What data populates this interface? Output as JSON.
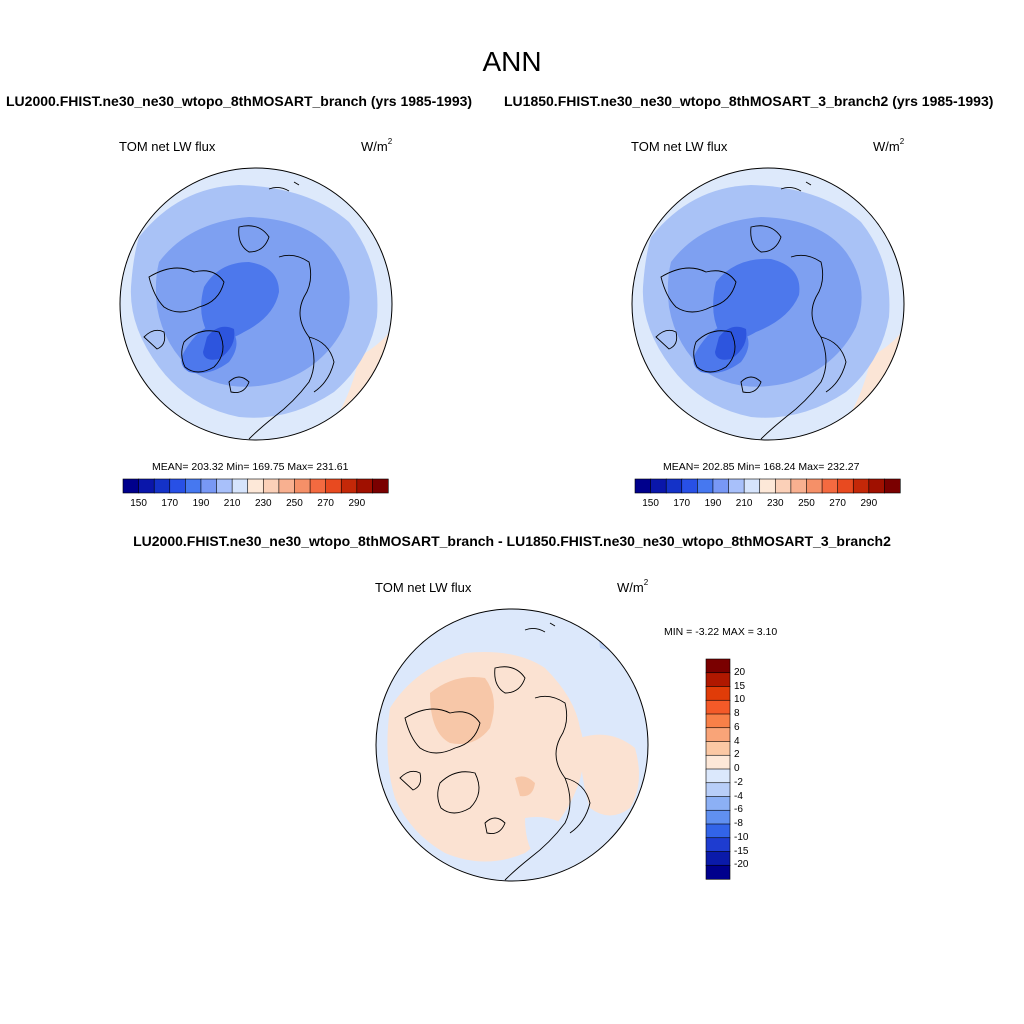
{
  "title": "ANN",
  "left_panel": {
    "case": "LU2000.FHIST.ne30_ne30_wtopo_8thMOSART_branch (yrs 1985-1993)",
    "variable": "TOM net LW flux",
    "units_base": "W/m",
    "units_exp": "2",
    "stats": "MEAN= 203.32  Min= 169.75  Max= 231.61"
  },
  "right_panel": {
    "case": "LU1850.FHIST.ne30_ne30_wtopo_8thMOSART_3_branch2 (yrs 1985-1993)",
    "variable": "TOM net LW flux",
    "units_base": "W/m",
    "units_exp": "2",
    "stats": "MEAN= 202.85  Min= 168.24  Max= 232.27"
  },
  "abs_colorbar": {
    "labels": [
      "150",
      "170",
      "190",
      "210",
      "230",
      "250",
      "270",
      "290"
    ],
    "colors": [
      "#00008c",
      "#0a16aa",
      "#1432c8",
      "#2850e6",
      "#4678f0",
      "#7898f5",
      "#a8c0fa",
      "#d6e4fc",
      "#fde8d8",
      "#fbd0b8",
      "#f8b090",
      "#f59068",
      "#f46a40",
      "#e84a20",
      "#c42808",
      "#a01000",
      "#7a0000"
    ]
  },
  "diff_panel": {
    "title": "LU2000.FHIST.ne30_ne30_wtopo_8thMOSART_branch - LU1850.FHIST.ne30_ne30_wtopo_8thMOSART_3_branch2",
    "variable": "TOM net LW flux",
    "units_base": "W/m",
    "units_exp": "2",
    "minmax": "MIN =  -3.22 MAX =   3.10"
  },
  "diff_colorbar": {
    "labels": [
      "20",
      "15",
      "10",
      "8",
      "6",
      "4",
      "2",
      "0",
      "-2",
      "-4",
      "-6",
      "-8",
      "-10",
      "-15",
      "-20"
    ],
    "colors": [
      "#7a0000",
      "#b01800",
      "#e03c08",
      "#f45a28",
      "#f88048",
      "#f9a478",
      "#fbc8a4",
      "#fde8d8",
      "#dbe8fc",
      "#b8cef8",
      "#8cb0f5",
      "#6090f0",
      "#3264e8",
      "#1e3cd0",
      "#0a1aaa",
      "#00008c"
    ]
  },
  "map_colors": {
    "ocean_edge": "#dde9fb",
    "low_mid": "#a9c2f6",
    "mid": "#7ea0f1",
    "deep": "#4d78ec",
    "deepest": "#2d55de",
    "warm_edge": "#fbe5d6",
    "diff_pos": "#fbe2d2",
    "diff_pos2": "#f7c7a8",
    "diff_neg": "#dce8fb",
    "diff_neg2": "#bcd1f7"
  }
}
